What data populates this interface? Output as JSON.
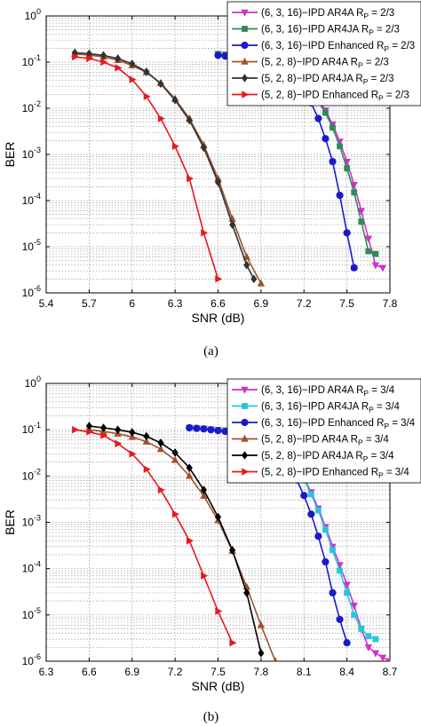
{
  "chart_data": [
    {
      "type": "line",
      "caption": "(a)",
      "xlabel": "SNR (dB)",
      "ylabel": "BER",
      "xlim": [
        5.4,
        7.8
      ],
      "ylim": [
        1e-06,
        1
      ],
      "yscale": "log",
      "grid": true,
      "legend_position": "top-right",
      "x_ticks": [
        "5.4",
        "5.7",
        "6",
        "6.3",
        "6.6",
        "6.9",
        "7.2",
        "7.5",
        "7.8"
      ],
      "y_ticks": [
        "10^0",
        "10^-1",
        "10^-2",
        "10^-3",
        "10^-4",
        "10^-5",
        "10^-6"
      ],
      "series": [
        {
          "name": "(6, 3, 16)−IPD AR4A R_P = 2/3",
          "color": "#cc33cc",
          "marker": "triangle-down",
          "x": [
            6.6,
            6.65,
            6.7,
            6.75,
            6.8,
            6.85,
            6.9,
            6.95,
            7.0,
            7.05,
            7.1,
            7.15,
            7.2,
            7.25,
            7.3,
            7.35,
            7.4,
            7.45,
            7.5,
            7.55,
            7.6,
            7.65,
            7.7,
            7.75
          ],
          "y": [
            0.15,
            0.145,
            0.14,
            0.135,
            0.125,
            0.115,
            0.105,
            0.095,
            0.085,
            0.072,
            0.06,
            0.048,
            0.036,
            0.025,
            0.016,
            0.009,
            0.0045,
            0.0019,
            0.0007,
            0.00022,
            6e-05,
            1.5e-05,
            4e-06,
            3.5e-06
          ]
        },
        {
          "name": "(6, 3, 16)−IPD AR4JA R_P = 2/3",
          "color": "#2e8b57",
          "marker": "square",
          "x": [
            6.6,
            6.65,
            6.7,
            6.75,
            6.8,
            6.85,
            6.9,
            6.95,
            7.0,
            7.05,
            7.1,
            7.15,
            7.2,
            7.25,
            7.3,
            7.35,
            7.4,
            7.45,
            7.5,
            7.55,
            7.6,
            7.65,
            7.7
          ],
          "y": [
            0.15,
            0.145,
            0.14,
            0.135,
            0.125,
            0.115,
            0.105,
            0.094,
            0.083,
            0.07,
            0.058,
            0.046,
            0.034,
            0.023,
            0.014,
            0.008,
            0.0038,
            0.0015,
            0.0005,
            0.00015,
            3.5e-05,
            8e-06,
            7e-06
          ]
        },
        {
          "name": "(6, 3, 16)−IPD Enhanced R_P = 2/3",
          "color": "#1a1acc",
          "marker": "circle",
          "x": [
            6.6,
            6.65,
            6.7,
            6.75,
            6.8,
            6.85,
            6.9,
            6.95,
            7.0,
            7.05,
            7.1,
            7.15,
            7.2,
            7.25,
            7.3,
            7.35,
            7.4,
            7.45,
            7.5,
            7.55
          ],
          "y": [
            0.14,
            0.135,
            0.13,
            0.125,
            0.115,
            0.105,
            0.095,
            0.085,
            0.072,
            0.06,
            0.047,
            0.034,
            0.022,
            0.013,
            0.006,
            0.0022,
            0.0007,
            0.00013,
            2e-05,
            3.5e-06
          ]
        },
        {
          "name": "(5, 2, 8)−IPD AR4A R_P = 2/3",
          "color": "#a0522d",
          "marker": "triangle-up",
          "x": [
            5.6,
            5.7,
            5.8,
            5.9,
            6.0,
            6.1,
            6.2,
            6.3,
            6.4,
            6.5,
            6.6,
            6.7,
            6.8,
            6.9
          ],
          "y": [
            0.15,
            0.142,
            0.13,
            0.11,
            0.085,
            0.06,
            0.035,
            0.016,
            0.006,
            0.0016,
            0.0003,
            4e-05,
            6e-06,
            1.6e-06
          ]
        },
        {
          "name": "(5, 2, 8)−IPD AR4JA R_P = 2/3",
          "color": "#333333",
          "marker": "diamond",
          "x": [
            5.6,
            5.7,
            5.8,
            5.9,
            6.0,
            6.1,
            6.2,
            6.3,
            6.4,
            6.5,
            6.6,
            6.7,
            6.8,
            6.85
          ],
          "y": [
            0.16,
            0.153,
            0.14,
            0.12,
            0.092,
            0.062,
            0.034,
            0.015,
            0.0055,
            0.0014,
            0.00025,
            3e-05,
            4e-06,
            2e-06
          ]
        },
        {
          "name": "(5, 2, 8)−IPD Enhanced R_P = 2/3",
          "color": "#e8191e",
          "marker": "triangle-right",
          "x": [
            5.6,
            5.7,
            5.8,
            5.9,
            6.0,
            6.1,
            6.2,
            6.3,
            6.4,
            6.5,
            6.6
          ],
          "y": [
            0.13,
            0.12,
            0.1,
            0.075,
            0.042,
            0.018,
            0.006,
            0.0015,
            0.0003,
            2e-05,
            2e-06
          ]
        }
      ]
    },
    {
      "type": "line",
      "caption": "(b)",
      "xlabel": "SNR (dB)",
      "ylabel": "BER",
      "xlim": [
        6.3,
        8.7
      ],
      "ylim": [
        1e-06,
        1
      ],
      "yscale": "log",
      "grid": true,
      "legend_position": "top-right",
      "x_ticks": [
        "6.3",
        "6.6",
        "6.9",
        "7.2",
        "7.5",
        "7.8",
        "8.1",
        "8.4",
        "8.7"
      ],
      "y_ticks": [
        "10^0",
        "10^-1",
        "10^-2",
        "10^-3",
        "10^-4",
        "10^-5",
        "10^-6"
      ],
      "series": [
        {
          "name": "(6, 3, 16)−IPD AR4A R_P = 3/4",
          "color": "#cc33cc",
          "marker": "triangle-down",
          "x": [
            7.3,
            7.35,
            7.4,
            7.45,
            7.5,
            7.55,
            7.6,
            7.65,
            7.7,
            7.75,
            7.8,
            7.85,
            7.9,
            7.95,
            8.0,
            8.05,
            8.1,
            8.15,
            8.2,
            8.25,
            8.3,
            8.35,
            8.4,
            8.45,
            8.5,
            8.55,
            8.6,
            8.65,
            8.7
          ],
          "y": [
            0.11,
            0.108,
            0.105,
            0.102,
            0.1,
            0.097,
            0.094,
            0.09,
            0.085,
            0.078,
            0.07,
            0.06,
            0.05,
            0.038,
            0.026,
            0.016,
            0.009,
            0.0045,
            0.002,
            0.0008,
            0.0003,
            0.00012,
            4.5e-05,
            1.6e-05,
            5e-06,
            2e-06,
            1.5e-06,
            1.2e-06,
            1e-06
          ]
        },
        {
          "name": "(6, 3, 16)−IPD AR4JA R_P = 3/4",
          "color": "#26c6da",
          "marker": "square",
          "x": [
            7.3,
            7.35,
            7.4,
            7.45,
            7.5,
            7.55,
            7.6,
            7.65,
            7.7,
            7.75,
            7.8,
            7.85,
            7.9,
            7.95,
            8.0,
            8.05,
            8.1,
            8.15,
            8.2,
            8.25,
            8.3,
            8.35,
            8.4,
            8.45,
            8.5,
            8.55,
            8.6
          ],
          "y": [
            0.11,
            0.108,
            0.105,
            0.102,
            0.099,
            0.096,
            0.092,
            0.088,
            0.083,
            0.076,
            0.068,
            0.058,
            0.048,
            0.036,
            0.025,
            0.015,
            0.0085,
            0.004,
            0.0018,
            0.0007,
            0.00025,
            9e-05,
            3e-05,
            1e-05,
            5e-06,
            3.5e-06,
            3e-06
          ]
        },
        {
          "name": "(6, 3, 16)−IPD Enhanced R_P = 3/4",
          "color": "#1a1acc",
          "marker": "circle",
          "x": [
            7.3,
            7.35,
            7.4,
            7.45,
            7.5,
            7.55,
            7.6,
            7.65,
            7.7,
            7.75,
            7.8,
            7.85,
            7.9,
            7.95,
            8.0,
            8.05,
            8.1,
            8.15,
            8.2,
            8.25,
            8.3,
            8.35,
            8.4
          ],
          "y": [
            0.11,
            0.107,
            0.104,
            0.1,
            0.096,
            0.092,
            0.087,
            0.081,
            0.074,
            0.066,
            0.057,
            0.046,
            0.035,
            0.024,
            0.015,
            0.0082,
            0.0038,
            0.0015,
            0.0005,
            0.00014,
            3e-05,
            8e-06,
            2.5e-06
          ]
        },
        {
          "name": "(5, 2, 8)−IPD AR4A R_P = 3/4",
          "color": "#a0522d",
          "marker": "triangle-up",
          "x": [
            6.6,
            6.7,
            6.8,
            6.9,
            7.0,
            7.1,
            7.2,
            7.3,
            7.4,
            7.5,
            7.6,
            7.7,
            7.8,
            7.9
          ],
          "y": [
            0.1,
            0.092,
            0.082,
            0.07,
            0.055,
            0.038,
            0.022,
            0.01,
            0.0037,
            0.0011,
            0.00024,
            4e-05,
            6e-06,
            1e-06
          ]
        },
        {
          "name": "(5, 2, 8)−IPD AR4JA R_P = 3/4",
          "color": "#000000",
          "marker": "diamond",
          "x": [
            6.6,
            6.7,
            6.8,
            6.9,
            7.0,
            7.1,
            7.2,
            7.3,
            7.4,
            7.5,
            7.6,
            7.7,
            7.8
          ],
          "y": [
            0.12,
            0.11,
            0.1,
            0.088,
            0.072,
            0.052,
            0.032,
            0.015,
            0.005,
            0.0013,
            0.00025,
            3e-05,
            1.5e-06
          ]
        },
        {
          "name": "(5, 2, 8)−IPD Enhanced R_P = 3/4",
          "color": "#e8191e",
          "marker": "triangle-right",
          "x": [
            6.5,
            6.6,
            6.7,
            6.8,
            6.9,
            7.0,
            7.1,
            7.2,
            7.3,
            7.4,
            7.5,
            7.6
          ],
          "y": [
            0.1,
            0.09,
            0.075,
            0.05,
            0.03,
            0.014,
            0.005,
            0.0015,
            0.0004,
            7e-05,
            1.2e-05,
            2.5e-06
          ]
        }
      ]
    }
  ]
}
